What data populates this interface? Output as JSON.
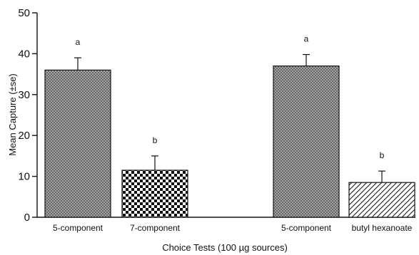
{
  "chart_data": {
    "type": "bar",
    "ylabel": "Mean Capture  (±se)",
    "xlabel": "Choice Tests (100 µg sources)",
    "ylim": [
      0,
      50
    ],
    "yticks": [
      0,
      10,
      20,
      30,
      40,
      50
    ],
    "grid": false,
    "bars": [
      {
        "label": "5-component",
        "value": 36,
        "se": 3,
        "significance": "a",
        "pattern": "dense-crosshatch",
        "group": 1
      },
      {
        "label": "7-component",
        "value": 11.5,
        "se": 3.5,
        "significance": "b",
        "pattern": "checkerboard",
        "group": 1
      },
      {
        "label": "5-component",
        "value": 37,
        "se": 2.8,
        "significance": "a",
        "pattern": "dense-crosshatch",
        "group": 2
      },
      {
        "label": "butyl hexanoate",
        "value": 8.5,
        "se": 2.8,
        "significance": "b",
        "pattern": "diagonal-lines",
        "group": 2
      }
    ]
  }
}
